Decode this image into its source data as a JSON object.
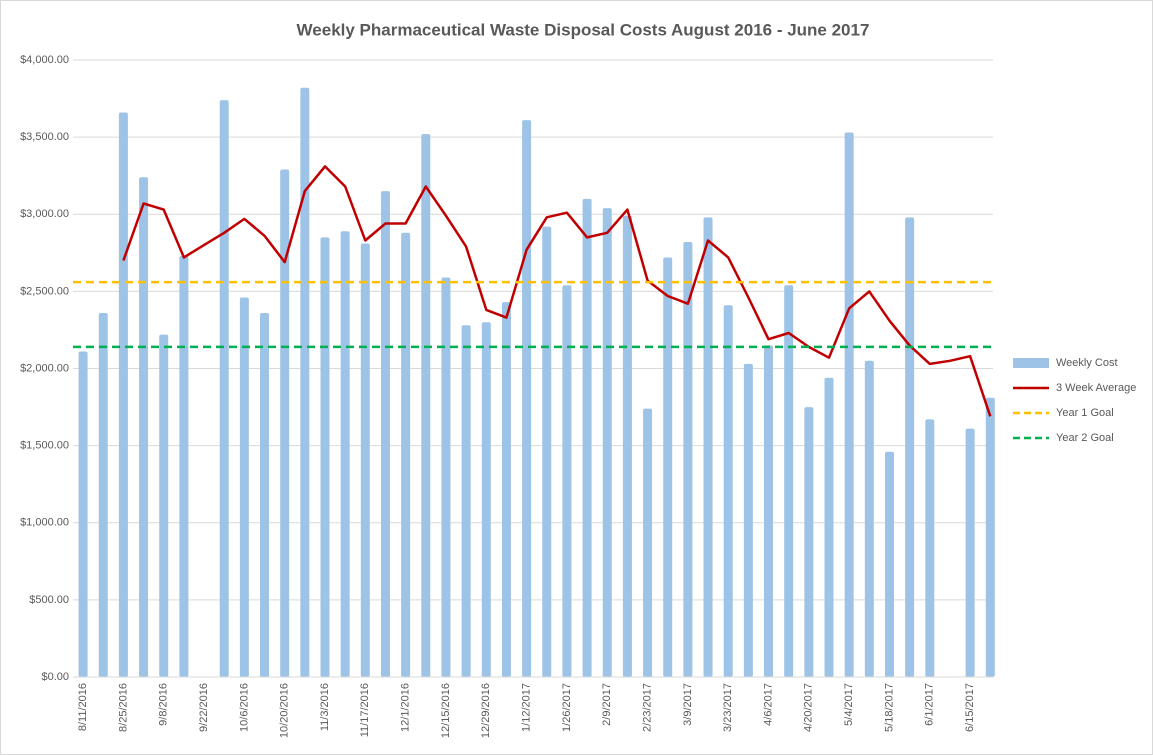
{
  "chart_data": {
    "type": "bar",
    "title": "Weekly Pharmaceutical Waste Disposal Costs August 2016 - June 2017",
    "categories": [
      "8/11/2016",
      null,
      "8/25/2016",
      null,
      "9/8/2016",
      null,
      "9/22/2016",
      null,
      "10/6/2016",
      null,
      "10/20/2016",
      null,
      "11/3/2016",
      null,
      "11/17/2016",
      null,
      "12/1/2016",
      null,
      "12/15/2016",
      null,
      "12/29/2016",
      null,
      "1/12/2017",
      null,
      "1/26/2017",
      null,
      "2/9/2017",
      null,
      "2/23/2017",
      null,
      "3/9/2017",
      null,
      "3/23/2017",
      null,
      "4/6/2017",
      null,
      "4/20/2017",
      null,
      "5/4/2017",
      null,
      "5/18/2017",
      null,
      "6/1/2017",
      null,
      "6/15/2017",
      null
    ],
    "series": [
      {
        "name": "Weekly Cost",
        "type": "bar",
        "color": "#9dc3e6",
        "values": [
          2110,
          2360,
          3660,
          3240,
          2220,
          2730,
          null,
          3740,
          2460,
          2360,
          3290,
          3820,
          2850,
          2890,
          2810,
          3150,
          2880,
          3520,
          2590,
          2280,
          2300,
          2430,
          3610,
          2920,
          2540,
          3100,
          3040,
          2990,
          1740,
          2720,
          2820,
          2980,
          2410,
          2030,
          2150,
          2540,
          1750,
          1940,
          3530,
          2050,
          1460,
          2980,
          1670,
          null,
          1610,
          1810
        ]
      },
      {
        "name": "3 Week Average",
        "type": "line",
        "color": "#c00000",
        "values": [
          null,
          null,
          2700,
          3070,
          3030,
          2720,
          2800,
          2880,
          2970,
          2860,
          2690,
          3150,
          3310,
          3180,
          2830,
          2940,
          2940,
          3180,
          2990,
          2790,
          2380,
          2330,
          2770,
          2980,
          3010,
          2850,
          2880,
          3030,
          2570,
          2470,
          2420,
          2830,
          2720,
          2460,
          2190,
          2230,
          2140,
          2070,
          2390,
          2500,
          2310,
          2150,
          2030,
          2050,
          2080,
          1690
        ]
      },
      {
        "name": "Year 1 Goal",
        "type": "hline",
        "color": "#ffc000",
        "value": 2560
      },
      {
        "name": "Year 2 Goal",
        "type": "hline",
        "color": "#00b050",
        "value": 2140
      }
    ],
    "ylim": [
      0,
      4000
    ],
    "yticks": [
      {
        "value": 0,
        "label": "$0.00"
      },
      {
        "value": 500,
        "label": "$500.00"
      },
      {
        "value": 1000,
        "label": "$1,000.00"
      },
      {
        "value": 1500,
        "label": "$1,500.00"
      },
      {
        "value": 2000,
        "label": "$2,000.00"
      },
      {
        "value": 2500,
        "label": "$2,500.00"
      },
      {
        "value": 3000,
        "label": "$3,000.00"
      },
      {
        "value": 3500,
        "label": "$3,500.00"
      },
      {
        "value": 4000,
        "label": "$4,000.00"
      }
    ],
    "grid": true,
    "legend": "right"
  }
}
